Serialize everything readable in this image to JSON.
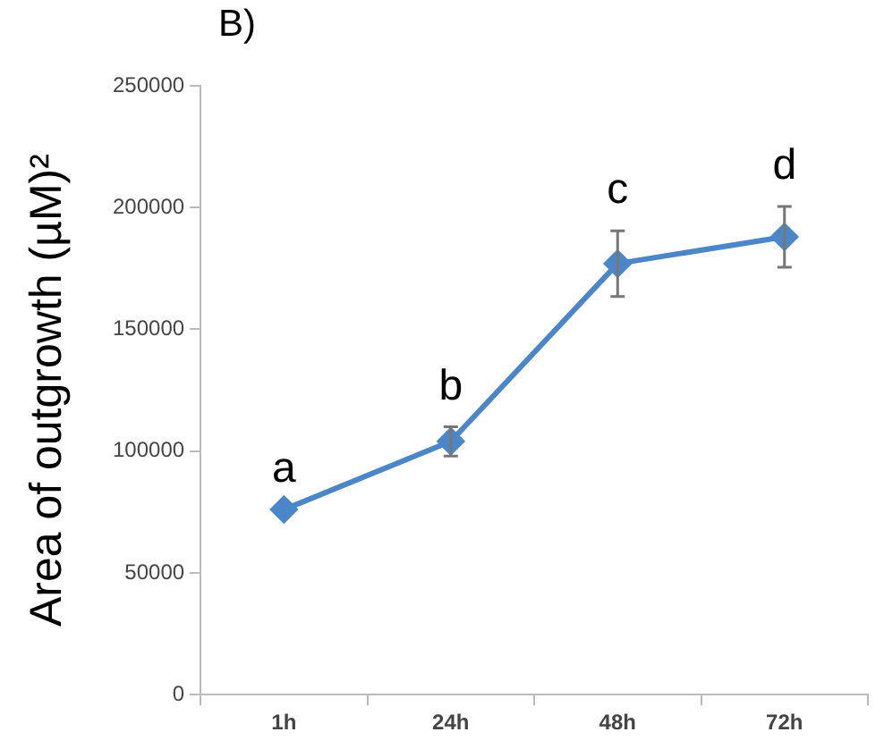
{
  "chart_data": {
    "type": "line",
    "title": "B)",
    "ylabel": "Area of outgrowth (µM)²",
    "categories": [
      "1h",
      "24h",
      "48h",
      "72h"
    ],
    "series": [
      {
        "color": "#4a86c8",
        "values": [
          76000,
          104000,
          177000,
          188000
        ],
        "errors": [
          null,
          6000,
          13500,
          12500
        ]
      }
    ],
    "ylim": [
      0,
      250000
    ],
    "yticks": [
      0,
      50000,
      100000,
      150000,
      200000,
      250000
    ],
    "marker": "diamond",
    "grid": false,
    "legend": false,
    "annotations": [
      "a",
      "b",
      "c",
      "d"
    ]
  }
}
